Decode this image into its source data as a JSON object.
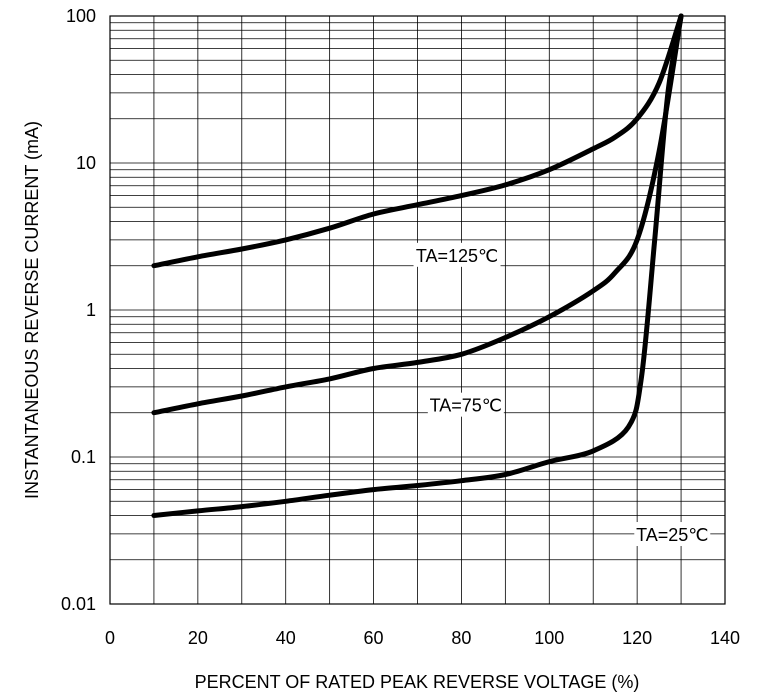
{
  "chart_data": {
    "type": "line",
    "title": "",
    "xlabel": "PERCENT OF RATED PEAK REVERSE VOLTAGE (%)",
    "ylabel": "INSTANTANEOUS REVERSE CURRENT (mA)",
    "xlim": [
      0,
      140
    ],
    "ylim": [
      0.01,
      100
    ],
    "yscale": "log",
    "grid": true,
    "x_ticks": [
      "0",
      "20",
      "40",
      "60",
      "80",
      "100",
      "120",
      "140"
    ],
    "y_ticks": [
      "0.01",
      "0.1",
      "1",
      "10",
      "100"
    ],
    "series": [
      {
        "name": "TA=125℃",
        "x": [
          10,
          20,
          30,
          40,
          50,
          60,
          70,
          80,
          90,
          100,
          110,
          115,
          120,
          125,
          130
        ],
        "y": [
          2.0,
          2.3,
          2.6,
          3.0,
          3.6,
          4.5,
          5.2,
          6.0,
          7.1,
          9.0,
          12.5,
          15.0,
          20.0,
          35.0,
          100.0
        ]
      },
      {
        "name": "TA=75℃",
        "x": [
          10,
          20,
          30,
          40,
          50,
          60,
          70,
          80,
          90,
          100,
          110,
          115,
          120,
          125,
          130
        ],
        "y": [
          0.2,
          0.23,
          0.26,
          0.3,
          0.34,
          0.4,
          0.44,
          0.5,
          0.65,
          0.9,
          1.35,
          1.8,
          3.0,
          12.0,
          100.0
        ]
      },
      {
        "name": "TA=25℃",
        "x": [
          10,
          20,
          30,
          40,
          50,
          60,
          70,
          80,
          90,
          100,
          110,
          118,
          121,
          124,
          127,
          130
        ],
        "y": [
          0.04,
          0.043,
          0.046,
          0.05,
          0.055,
          0.06,
          0.064,
          0.069,
          0.076,
          0.093,
          0.11,
          0.16,
          0.35,
          3.0,
          30.0,
          100.0
        ]
      }
    ]
  }
}
